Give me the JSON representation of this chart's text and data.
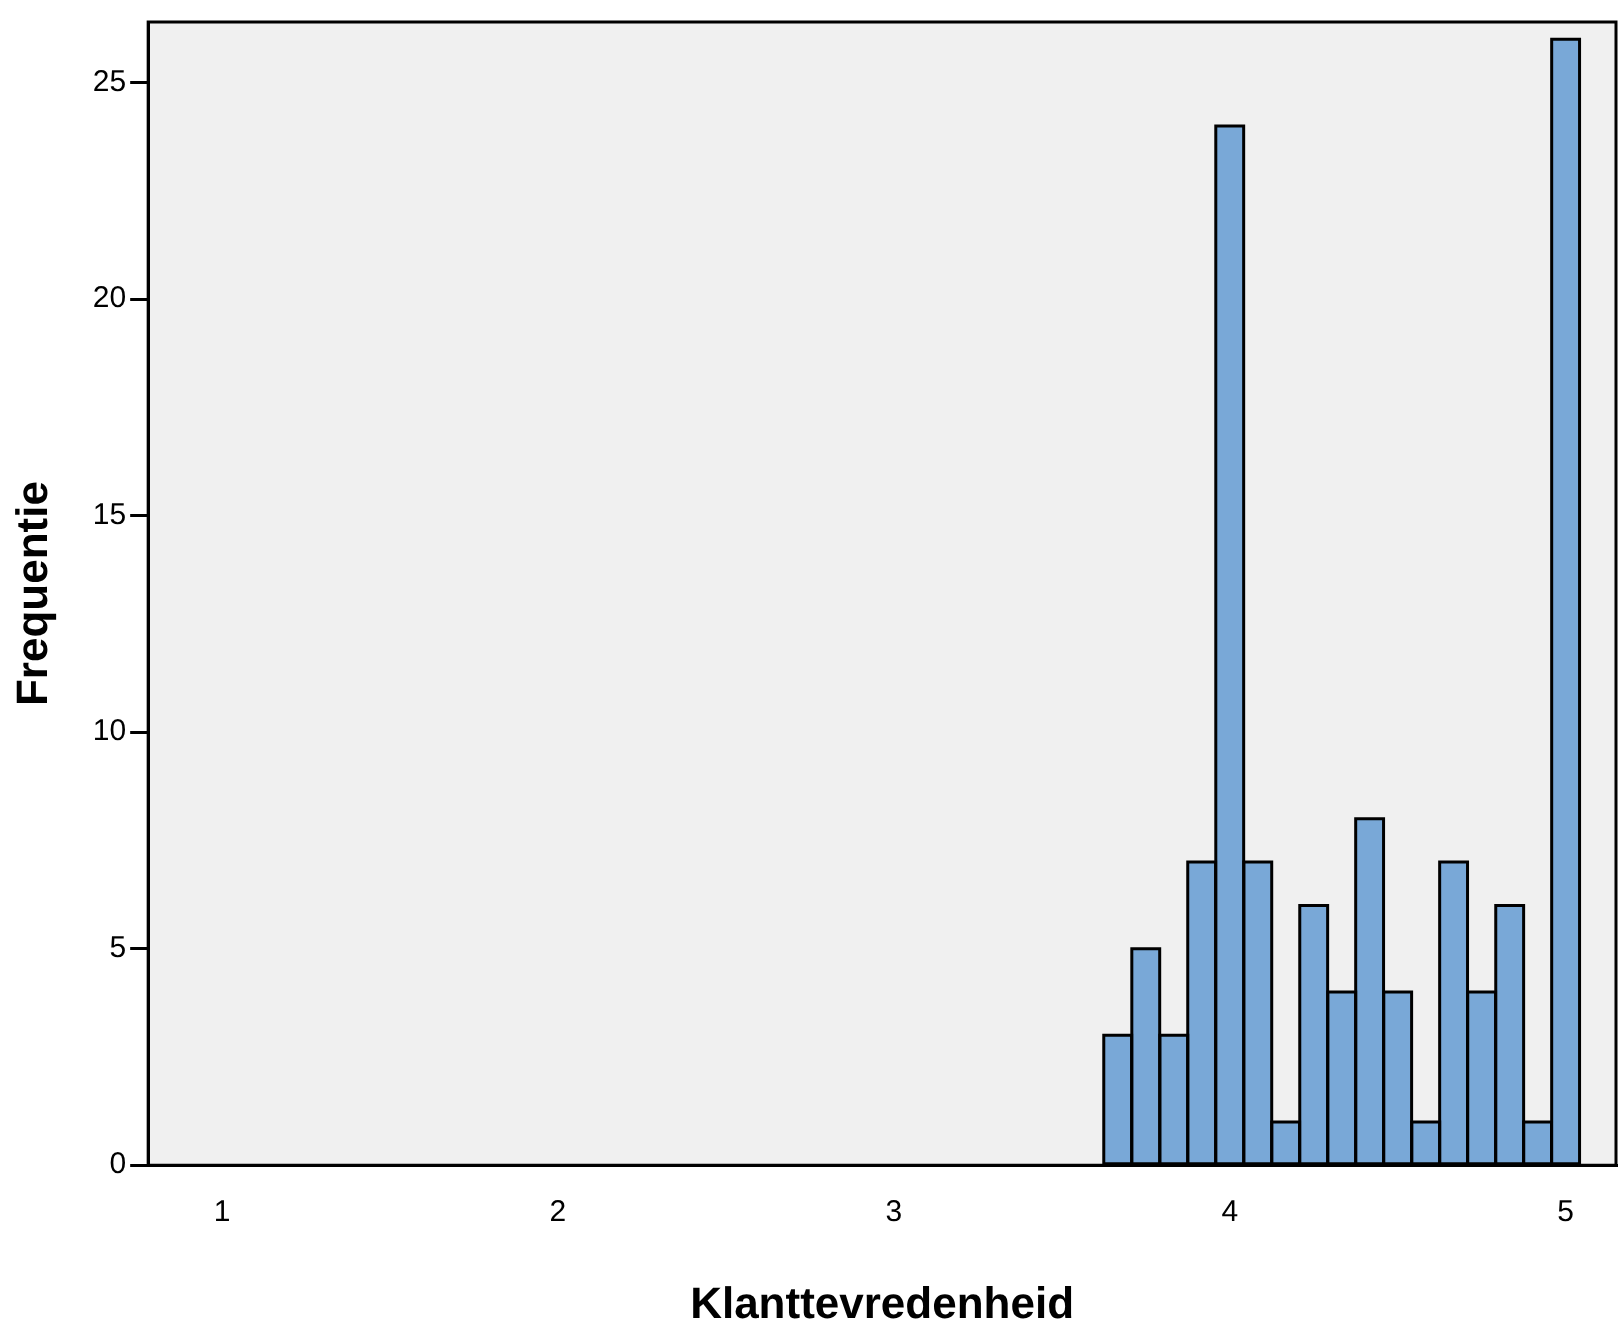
{
  "chart_data": {
    "type": "histogram",
    "xlabel": "Klanttevredenheid",
    "ylabel": "Frequentie",
    "bins": [
      3.625,
      3.708,
      3.792,
      3.875,
      3.958,
      4.042,
      4.125,
      4.208,
      4.292,
      4.375,
      4.458,
      4.542,
      4.625,
      4.708,
      4.792,
      4.875,
      4.958,
      5.042
    ],
    "values": [
      3,
      5,
      3,
      7,
      24,
      7,
      1,
      6,
      4,
      8,
      4,
      1,
      7,
      4,
      6,
      1,
      26
    ],
    "color": "#79a8d7",
    "xlim": [
      0.78,
      5.15
    ],
    "xticks": [
      1,
      2,
      3,
      4,
      5
    ],
    "ylim": [
      0,
      26.4
    ],
    "yticks": [
      0,
      5,
      10,
      15,
      20,
      25
    ],
    "grid": false,
    "legend": false
  }
}
